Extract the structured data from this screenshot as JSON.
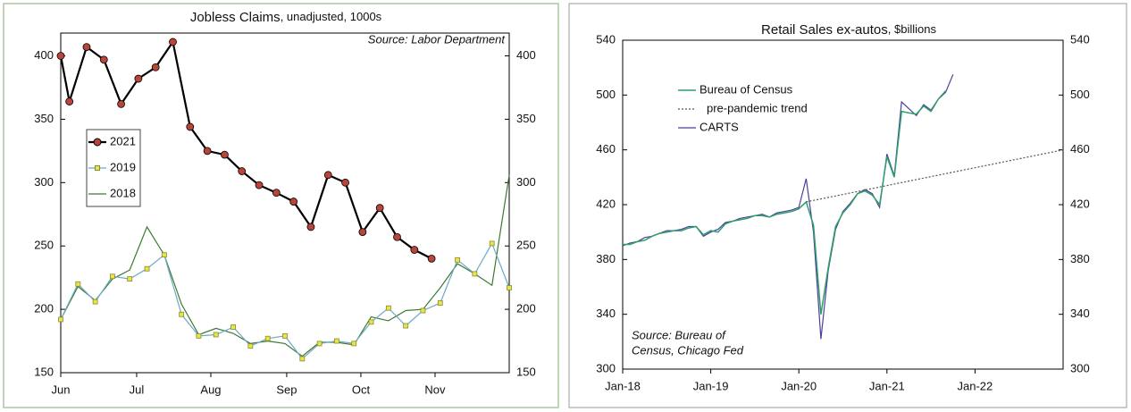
{
  "chart_data": [
    {
      "type": "line",
      "title": "Jobless Claims",
      "subtitle": "unadjusted, 1000s",
      "annotation": "Source: Labor Department",
      "xlim": [
        0,
        26
      ],
      "xticks": [
        {
          "value": 0,
          "label": "Jun"
        },
        {
          "value": 4.4,
          "label": "Jul"
        },
        {
          "value": 8.7,
          "label": "Aug"
        },
        {
          "value": 13.1,
          "label": "Sep"
        },
        {
          "value": 17.4,
          "label": "Oct"
        },
        {
          "value": 21.7,
          "label": "Nov"
        }
      ],
      "ylim": [
        150,
        418
      ],
      "yticks": [
        150,
        200,
        250,
        300,
        350,
        400
      ],
      "right_axis": true,
      "legend": "left",
      "legend_box": true,
      "series": [
        {
          "name": "2021",
          "color": "#000000",
          "marker": "circle",
          "marker_color": "#b8443a",
          "width": 2.2,
          "x": [
            0,
            0.5,
            1.5,
            2.5,
            3.5,
            4.5,
            5.5,
            6.5,
            7.5,
            8.5,
            9.5,
            10.5,
            11.5,
            12.5,
            13.5,
            14.5,
            15.5,
            16.5,
            17.5,
            18.5,
            19.5,
            20.5,
            21.5
          ],
          "values": [
            400,
            364,
            407,
            397,
            362,
            382,
            391,
            411,
            344,
            325,
            322,
            309,
            298,
            292,
            285,
            265,
            306,
            300,
            261,
            280,
            257,
            247,
            240
          ]
        },
        {
          "name": "2019",
          "color": "#6fa8c8",
          "marker": "square",
          "marker_color": "#e6e64a",
          "width": 1.2,
          "x": [
            0,
            1,
            2,
            3,
            4,
            5,
            6,
            7,
            8,
            9,
            10,
            11,
            12,
            13,
            14,
            15,
            16,
            17,
            18,
            19,
            20,
            21,
            22,
            23,
            24,
            25,
            26
          ],
          "values": [
            192,
            220,
            206,
            226,
            224,
            232,
            243,
            196,
            179,
            180,
            186,
            171,
            177,
            179,
            161,
            173,
            175,
            173,
            190,
            201,
            187,
            199,
            205,
            239,
            228,
            252,
            217
          ]
        },
        {
          "name": "2018",
          "color": "#3a7a30",
          "width": 1.2,
          "x": [
            0,
            1,
            2,
            3,
            4,
            5,
            6,
            7,
            8,
            9,
            10,
            11,
            12,
            13,
            14,
            15,
            16,
            17,
            18,
            19,
            20,
            21,
            22,
            23,
            24,
            25,
            26
          ],
          "values": [
            192,
            218,
            207,
            224,
            231,
            265,
            243,
            204,
            180,
            185,
            181,
            173,
            175,
            173,
            163,
            174,
            174,
            172,
            194,
            191,
            199,
            200,
            217,
            236,
            228,
            219,
            306
          ]
        }
      ]
    },
    {
      "type": "line",
      "title": "Retail Sales ex-autos",
      "subtitle": "$billions",
      "annotation": [
        "Source: Bureau of",
        "Census, Chicago Fed"
      ],
      "xlim": [
        0,
        60
      ],
      "xticks": [
        {
          "value": 0,
          "label": "Jan-18"
        },
        {
          "value": 12,
          "label": "Jan-19"
        },
        {
          "value": 24,
          "label": "Jan-20"
        },
        {
          "value": 36,
          "label": "Jan-21"
        },
        {
          "value": 48,
          "label": "Jan-22"
        }
      ],
      "ylim": [
        300,
        540
      ],
      "yticks": [
        300,
        340,
        380,
        420,
        460,
        500,
        540
      ],
      "right_axis": true,
      "legend": "upper left",
      "legend_box": false,
      "series": [
        {
          "name": "Bureau of Census",
          "color": "#2e9e6a",
          "width": 1.5,
          "x": [
            0,
            1,
            2,
            3,
            4,
            5,
            6,
            7,
            8,
            9,
            10,
            11,
            12,
            13,
            14,
            15,
            16,
            17,
            18,
            19,
            20,
            21,
            22,
            23,
            24,
            25,
            26,
            27,
            28,
            29,
            30,
            31,
            32,
            33,
            34,
            35,
            36,
            37,
            38,
            39,
            40,
            41,
            42,
            43,
            44
          ],
          "values": [
            391,
            391,
            393,
            394,
            397,
            399,
            400,
            401,
            401,
            403,
            404,
            398,
            401,
            400,
            406,
            408,
            409,
            410,
            412,
            412,
            411,
            413,
            414,
            415,
            417,
            422,
            405,
            340,
            374,
            404,
            414,
            420,
            428,
            430,
            427,
            420,
            455,
            440,
            488,
            487,
            486,
            492,
            488,
            497,
            503
          ]
        },
        {
          "name": "pre-pandemic trend",
          "color": "#555555",
          "style": "dotted",
          "width": 1.2,
          "x": [
            25,
            60
          ],
          "values": [
            422,
            460
          ]
        },
        {
          "name": "CARTS",
          "color": "#4b3f9e",
          "width": 1.2,
          "x": [
            0,
            1,
            2,
            3,
            4,
            5,
            6,
            7,
            8,
            9,
            10,
            11,
            12,
            13,
            14,
            15,
            16,
            17,
            18,
            19,
            20,
            21,
            22,
            23,
            24,
            25,
            26,
            27,
            28,
            29,
            30,
            31,
            32,
            33,
            34,
            35,
            36,
            37,
            38,
            39,
            40,
            41,
            42,
            43,
            44,
            45
          ],
          "values": [
            390,
            392,
            393,
            396,
            397,
            399,
            401,
            401,
            402,
            404,
            404,
            397,
            400,
            402,
            407,
            408,
            410,
            411,
            412,
            413,
            411,
            414,
            415,
            416,
            418,
            439,
            400,
            322,
            372,
            402,
            415,
            421,
            428,
            431,
            428,
            418,
            457,
            441,
            495,
            490,
            485,
            493,
            489,
            497,
            502,
            515
          ]
        }
      ]
    }
  ]
}
